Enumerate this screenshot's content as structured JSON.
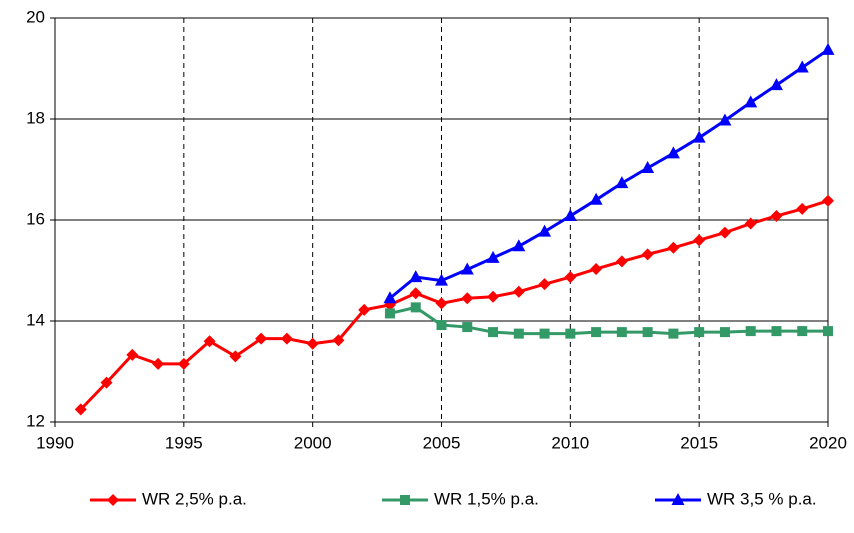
{
  "chart_data": {
    "type": "line",
    "x": [
      1991,
      1992,
      1993,
      1994,
      1995,
      1996,
      1997,
      1998,
      1999,
      2000,
      2001,
      2002,
      2003,
      2004,
      2005,
      2006,
      2007,
      2008,
      2009,
      2010,
      2011,
      2012,
      2013,
      2014,
      2015,
      2016,
      2017,
      2018,
      2019,
      2020
    ],
    "series": [
      {
        "name": "WR 2,5% p.a.",
        "color": "#ff0000",
        "marker": "diamond",
        "values": [
          12.25,
          12.78,
          13.33,
          13.15,
          13.15,
          13.6,
          13.3,
          13.65,
          13.65,
          13.55,
          13.62,
          14.22,
          14.32,
          14.55,
          14.35,
          14.45,
          14.48,
          14.58,
          14.73,
          14.87,
          15.03,
          15.18,
          15.32,
          15.45,
          15.6,
          15.75,
          15.93,
          16.08,
          16.22,
          16.38
        ]
      },
      {
        "name": "WR 1,5% p.a.",
        "color": "#339966",
        "marker": "square",
        "values": [
          null,
          null,
          null,
          null,
          null,
          null,
          null,
          null,
          null,
          null,
          null,
          null,
          14.15,
          14.27,
          13.92,
          13.88,
          13.78,
          13.75,
          13.75,
          13.75,
          13.78,
          13.78,
          13.78,
          13.75,
          13.78,
          13.78,
          13.8,
          13.8,
          13.8,
          13.8
        ]
      },
      {
        "name": "WR 3,5 % p.a.",
        "color": "#0000ff",
        "marker": "triangle",
        "values": [
          null,
          null,
          null,
          null,
          null,
          null,
          null,
          null,
          null,
          null,
          null,
          null,
          14.45,
          14.87,
          14.8,
          15.02,
          15.25,
          15.48,
          15.77,
          16.08,
          16.4,
          16.73,
          17.03,
          17.32,
          17.63,
          17.97,
          18.33,
          18.67,
          19.02,
          19.37
        ]
      }
    ],
    "xlim": [
      1990,
      2020
    ],
    "xticks": [
      1990,
      1995,
      2000,
      2005,
      2010,
      2015,
      2020
    ],
    "ylim": [
      12,
      20
    ],
    "yticks": [
      12,
      14,
      16,
      18,
      20
    ],
    "grid": true,
    "legend": "bottom"
  }
}
